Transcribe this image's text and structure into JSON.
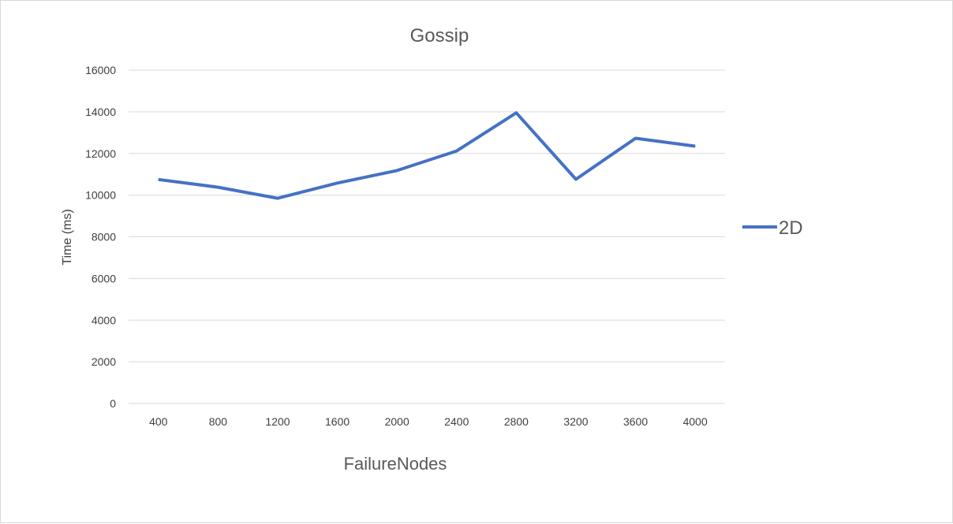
{
  "chart_data": {
    "type": "line",
    "title": "Gossip",
    "xlabel": "FailureNodes",
    "ylabel": "Time (ms)",
    "categories": [
      "400",
      "800",
      "1200",
      "1600",
      "2000",
      "2400",
      "2800",
      "3200",
      "3600",
      "4000"
    ],
    "series": [
      {
        "name": "2D",
        "values": [
          10750,
          10380,
          9850,
          10580,
          11180,
          12120,
          13950,
          10760,
          12730,
          12350
        ]
      }
    ],
    "ylim": [
      0,
      16000
    ],
    "yticks": [
      "0",
      "2000",
      "4000",
      "6000",
      "8000",
      "10000",
      "12000",
      "14000",
      "16000"
    ],
    "grid": true,
    "legend": "right",
    "colors": {
      "series": "#4472C4",
      "grid": "#d9d9d9",
      "text": "#595959"
    }
  }
}
